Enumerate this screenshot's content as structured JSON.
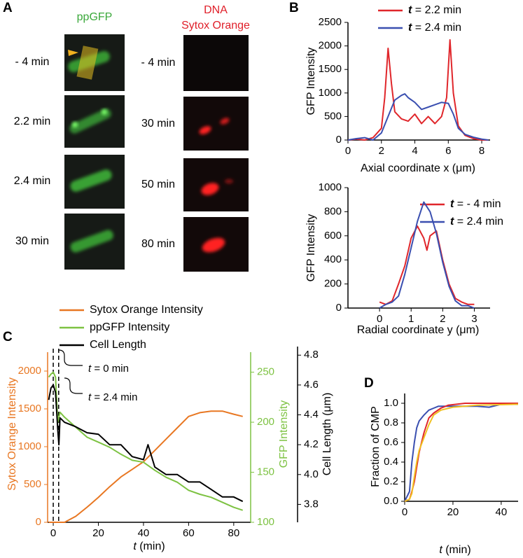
{
  "panel_labels": [
    "A",
    "B",
    "C",
    "D"
  ],
  "panel_a": {
    "columns": [
      {
        "title": [
          "ppGFP"
        ],
        "color": "#3aa83a",
        "times": [
          "- 4 min",
          "2.2 min",
          "2.4 min",
          "30 min"
        ]
      },
      {
        "title": [
          "DNA",
          "Sytox Orange"
        ],
        "color": "#e0202a",
        "times": [
          "- 4 min",
          "30 min",
          "50 min",
          "80 min"
        ]
      }
    ]
  },
  "chart_data": [
    {
      "type": "line",
      "ylabel": "GFP Intensity",
      "xlabel": "Axial coordinate x (μm)",
      "xlim": [
        0,
        8.5
      ],
      "xticks": [
        0,
        2,
        4,
        6,
        8
      ],
      "ylim": [
        0,
        2500
      ],
      "yticks": [
        0,
        500,
        1000,
        1500,
        2000,
        2500
      ],
      "legend": "upper right",
      "series": [
        {
          "name": "t = 2.2 min",
          "color": "#e0262b",
          "x": [
            0,
            0.5,
            1,
            1.5,
            2,
            2.2,
            2.4,
            2.6,
            2.8,
            3.2,
            3.6,
            4,
            4.4,
            4.8,
            5.2,
            5.6,
            5.9,
            6.1,
            6.3,
            6.6,
            7,
            7.5,
            8,
            8.4
          ],
          "values": [
            0,
            20,
            0,
            50,
            250,
            900,
            1950,
            1200,
            600,
            450,
            400,
            550,
            350,
            500,
            350,
            500,
            900,
            2130,
            1000,
            300,
            100,
            30,
            0,
            0
          ]
        },
        {
          "name": "t = 2.4 min",
          "color": "#3a4fb0",
          "x": [
            0,
            0.5,
            1,
            1.5,
            2,
            2.4,
            2.8,
            3.2,
            3.4,
            3.6,
            4,
            4.4,
            4.8,
            5.2,
            5.6,
            6,
            6.3,
            6.6,
            7,
            7.5,
            8,
            8.4
          ],
          "values": [
            0,
            30,
            50,
            0,
            150,
            500,
            850,
            950,
            980,
            900,
            800,
            650,
            700,
            750,
            800,
            780,
            550,
            250,
            120,
            60,
            20,
            0
          ]
        }
      ]
    },
    {
      "type": "line",
      "ylabel": "GFP Intensity",
      "xlabel": "Radial coordinate y (μm)",
      "xlim": [
        -1,
        3.5
      ],
      "xticks": [
        0,
        1,
        2,
        3
      ],
      "ylim": [
        0,
        1000
      ],
      "yticks": [
        0,
        200,
        400,
        600,
        800,
        1000
      ],
      "legend": "upper right",
      "series": [
        {
          "name": "t = - 4 min",
          "color": "#e0262b",
          "x": [
            0,
            0.2,
            0.4,
            0.6,
            0.8,
            1,
            1.2,
            1.4,
            1.5,
            1.6,
            1.8,
            2,
            2.2,
            2.4,
            2.6,
            2.8,
            3
          ],
          "values": [
            50,
            30,
            60,
            200,
            350,
            580,
            680,
            580,
            480,
            600,
            640,
            400,
            200,
            80,
            50,
            30,
            30
          ]
        },
        {
          "name": "t = 2.4 min",
          "color": "#3a4fb0",
          "x": [
            0,
            0.2,
            0.4,
            0.6,
            0.8,
            1,
            1.2,
            1.4,
            1.6,
            1.8,
            2,
            2.2,
            2.4,
            2.6,
            2.8,
            3
          ],
          "values": [
            0,
            30,
            50,
            100,
            280,
            500,
            720,
            880,
            800,
            620,
            380,
            180,
            60,
            20,
            20,
            0
          ]
        }
      ]
    },
    {
      "type": "line",
      "ylabel": "Sytox Orange Intensity",
      "y2label": "GFP Intensity",
      "y3label": "Cell Length (μm)",
      "xlabel": "t (min)",
      "xlim": [
        -2.5,
        87.5
      ],
      "xticks": [
        0,
        20,
        40,
        60,
        80
      ],
      "ylim": [
        0,
        2250
      ],
      "yticks": [
        0,
        500,
        1000,
        1500,
        2000
      ],
      "y2lim": [
        100,
        270
      ],
      "y2ticks": [
        100,
        150,
        200,
        250
      ],
      "y3lim": [
        3.68,
        4.82
      ],
      "y3ticks": [
        3.8,
        {
          "value": 4,
          "label": "4.0"
        },
        4.2,
        4.4,
        4.6,
        4.8
      ],
      "vlines": [
        0,
        2.4
      ],
      "annotations": [
        "t = 0 min",
        "t = 2.4 min"
      ],
      "legend": "upper left",
      "series": [
        {
          "name": "Sytox Orange Intensity",
          "color": "#e87722",
          "axis": "y",
          "x": [
            -2,
            0,
            3,
            5,
            10,
            15,
            20,
            25,
            30,
            35,
            40,
            45,
            50,
            55,
            60,
            65,
            70,
            75,
            80,
            84
          ],
          "values": [
            0,
            0,
            0,
            0,
            80,
            200,
            330,
            470,
            600,
            700,
            800,
            950,
            1100,
            1250,
            1400,
            1450,
            1470,
            1470,
            1430,
            1400
          ]
        },
        {
          "name": "ppGFP Intensity",
          "color": "#7dc242",
          "axis": "y2",
          "x": [
            -2,
            -1,
            0,
            1,
            2,
            3,
            5,
            10,
            15,
            20,
            25,
            30,
            35,
            40,
            45,
            50,
            55,
            60,
            65,
            70,
            75,
            80,
            84
          ],
          "values": [
            245,
            248,
            250,
            245,
            200,
            210,
            205,
            195,
            185,
            180,
            175,
            168,
            162,
            160,
            152,
            145,
            140,
            132,
            128,
            125,
            120,
            115,
            112
          ]
        },
        {
          "name": "Cell Length",
          "color": "#000000",
          "axis": "y3",
          "x": [
            -2,
            -1,
            0,
            1,
            2,
            2.5,
            3,
            5,
            10,
            15,
            20,
            25,
            30,
            35,
            40,
            42,
            45,
            50,
            55,
            60,
            65,
            70,
            75,
            80,
            84
          ],
          "values": [
            4.5,
            4.58,
            4.6,
            4.55,
            4.3,
            4.2,
            4.38,
            4.35,
            4.32,
            4.28,
            4.27,
            4.2,
            4.2,
            4.12,
            4.1,
            4.2,
            4.05,
            4,
            4,
            3.95,
            3.95,
            3.9,
            3.85,
            3.85,
            3.82
          ]
        }
      ]
    },
    {
      "type": "line",
      "ylabel": "Fraction of CMP",
      "xlabel": "t (min)",
      "xlim": [
        0,
        47
      ],
      "xticks": [
        0,
        20,
        40
      ],
      "ylim": [
        0,
        1.1
      ],
      "yticks": [
        {
          "value": 0,
          "label": "0.0"
        },
        {
          "value": 0.2,
          "label": "0.2"
        },
        {
          "value": 0.4,
          "label": "0.4"
        },
        {
          "value": 0.6,
          "label": "0.6"
        },
        {
          "value": 0.8,
          "label": "0.8"
        },
        {
          "value": 1,
          "label": "1.0"
        }
      ],
      "series": [
        {
          "color": "#3a4fb0",
          "x": [
            0,
            2,
            3,
            4,
            5,
            6,
            8,
            10,
            12,
            14,
            20,
            30,
            35,
            40,
            47
          ],
          "values": [
            0,
            0.1,
            0.4,
            0.6,
            0.75,
            0.82,
            0.88,
            0.93,
            0.95,
            0.97,
            0.97,
            0.97,
            0.96,
            0.99,
            0.99
          ]
        },
        {
          "color": "#e0262b",
          "x": [
            0,
            2,
            3,
            4,
            5,
            6,
            7,
            8,
            10,
            12,
            15,
            18,
            25,
            47
          ],
          "values": [
            0,
            0.02,
            0.1,
            0.2,
            0.35,
            0.5,
            0.6,
            0.7,
            0.85,
            0.9,
            0.95,
            0.98,
            1,
            1
          ]
        },
        {
          "color": "#f0c020",
          "x": [
            0,
            2,
            3,
            4,
            5,
            6,
            8,
            10,
            12,
            15,
            20,
            30,
            47
          ],
          "values": [
            0,
            0.02,
            0.08,
            0.25,
            0.4,
            0.52,
            0.65,
            0.78,
            0.88,
            0.93,
            0.96,
            0.98,
            0.99
          ]
        }
      ]
    }
  ]
}
